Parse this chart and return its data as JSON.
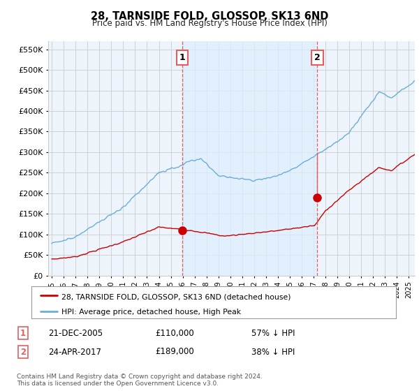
{
  "title": "28, TARNSIDE FOLD, GLOSSOP, SK13 6ND",
  "subtitle": "Price paid vs. HM Land Registry's House Price Index (HPI)",
  "ylim": [
    0,
    570000
  ],
  "yticks": [
    0,
    50000,
    100000,
    150000,
    200000,
    250000,
    300000,
    350000,
    400000,
    450000,
    500000,
    550000
  ],
  "xlim_start": 1994.7,
  "xlim_end": 2025.5,
  "hpi_color": "#6aaed6",
  "hpi_fill_color": "#ddeeff",
  "price_color": "#cc0000",
  "vline_color": "#e06060",
  "transaction1_x": 2005.97,
  "transaction1_y": 110000,
  "transaction2_x": 2017.31,
  "transaction2_y": 189000,
  "legend_line1": "28, TARNSIDE FOLD, GLOSSOP, SK13 6ND (detached house)",
  "legend_line2": "HPI: Average price, detached house, High Peak",
  "table_row1": [
    "1",
    "21-DEC-2005",
    "£110,000",
    "57% ↓ HPI"
  ],
  "table_row2": [
    "2",
    "24-APR-2017",
    "£189,000",
    "38% ↓ HPI"
  ],
  "footer": "Contains HM Land Registry data © Crown copyright and database right 2024.\nThis data is licensed under the Open Government Licence v3.0.",
  "background_color": "#ffffff",
  "plot_bg_color": "#eef4fb",
  "grid_color": "#cccccc"
}
